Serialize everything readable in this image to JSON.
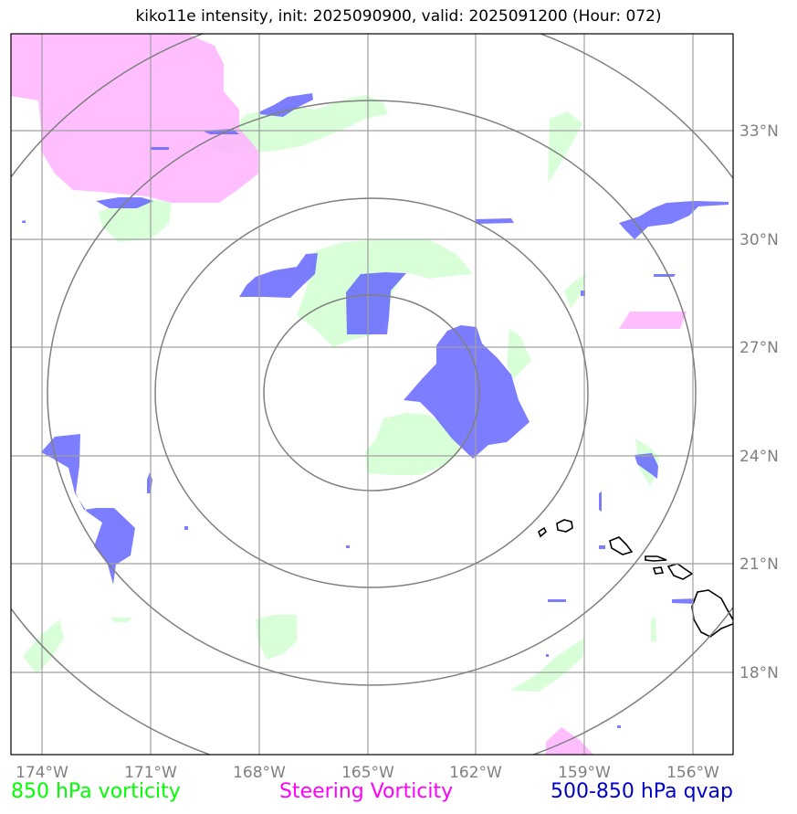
{
  "title": "kiko11e intensity, init: 2025090900, valid: 2025091200 (Hour: 072)",
  "map": {
    "lon_labels": [
      "174°W",
      "171°W",
      "168°W",
      "165°W",
      "162°W",
      "159°W",
      "156°W"
    ],
    "lat_labels": [
      "33°N",
      "30°N",
      "27°N",
      "24°N",
      "21°N",
      "18°N"
    ],
    "gridline_color": "#a0a0a0",
    "range_ring_color": "#808080",
    "layers": {
      "vorticity_850_color": "#ccffcc",
      "steering_vorticity_color": "#ffb3ff",
      "qvap_color": "#6666ff"
    }
  },
  "legend": {
    "vorticity_850": {
      "label": "850 hPa vorticity",
      "color": "#00ff00"
    },
    "steering_vorticity": {
      "label": "Steering Vorticity",
      "color": "#ff00ff"
    },
    "qvap": {
      "label": "500-850 hPa qvap",
      "color": "#0000cc"
    }
  }
}
